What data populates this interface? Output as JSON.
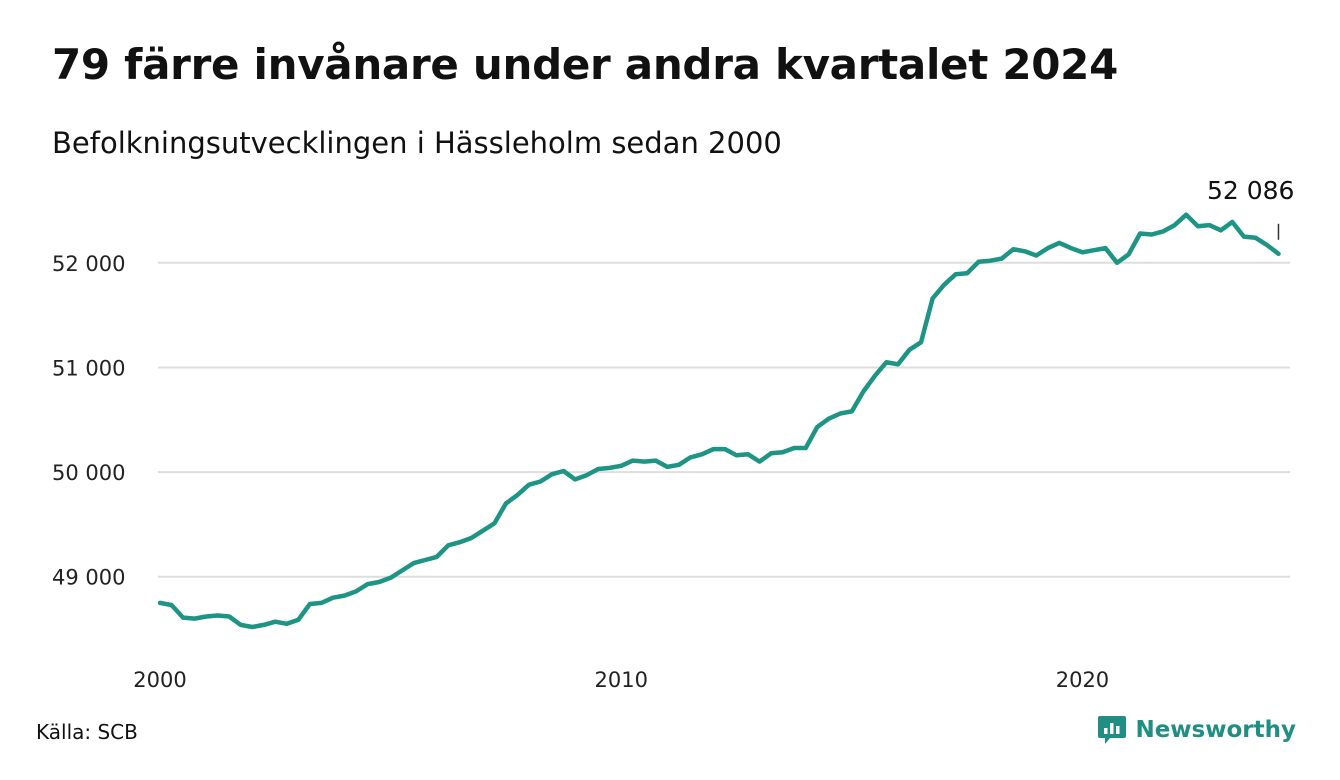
{
  "title": "79 färre invånare under andra kvartalet 2024",
  "subtitle": "Befolkningsutvecklingen i Hässleholm sedan 2000",
  "source": "Källa: SCB",
  "brand": {
    "name": "Newsworthy",
    "color": "#1e8f82"
  },
  "colors": {
    "line": "#1e9484",
    "grid": "#dddddd"
  },
  "chart_data": {
    "type": "line",
    "title": "79 färre invånare under andra kvartalet 2024",
    "subtitle": "Befolkningsutvecklingen i Hässleholm sedan 2000",
    "xlabel": "",
    "ylabel": "",
    "xlim": [
      2000,
      2024.5
    ],
    "ylim": [
      48300,
      52600
    ],
    "grid": true,
    "x_ticks": [
      2000,
      2010,
      2020
    ],
    "x_tick_labels": [
      "2000",
      "2010",
      "2020"
    ],
    "y_ticks": [
      49000,
      50000,
      51000,
      52000
    ],
    "y_tick_labels": [
      "49 000",
      "50 000",
      "51 000",
      "52 000"
    ],
    "annotation": {
      "x": 2024.25,
      "y": 52086,
      "label": "52 086"
    },
    "series": [
      {
        "x": [
          2000.0,
          2000.25,
          2000.5,
          2000.75,
          2001.0,
          2001.25,
          2001.5,
          2001.75,
          2002.0,
          2002.25,
          2002.5,
          2002.75,
          2003.0,
          2003.25,
          2003.5,
          2003.75,
          2004.0,
          2004.25,
          2004.5,
          2004.75,
          2005.0,
          2005.25,
          2005.5,
          2005.75,
          2006.0,
          2006.25,
          2006.5,
          2006.75,
          2007.0,
          2007.25,
          2007.5,
          2007.75,
          2008.0,
          2008.25,
          2008.5,
          2008.75,
          2009.0,
          2009.25,
          2009.5,
          2009.75,
          2010.0,
          2010.25,
          2010.5,
          2010.75,
          2011.0,
          2011.25,
          2011.5,
          2011.75,
          2012.0,
          2012.25,
          2012.5,
          2012.75,
          2013.0,
          2013.25,
          2013.5,
          2013.75,
          2014.0,
          2014.25,
          2014.5,
          2014.75,
          2015.0,
          2015.25,
          2015.5,
          2015.75,
          2016.0,
          2016.25,
          2016.5,
          2016.75,
          2017.0,
          2017.25,
          2017.5,
          2017.75,
          2018.0,
          2018.25,
          2018.5,
          2018.75,
          2019.0,
          2019.25,
          2019.5,
          2019.75,
          2020.0,
          2020.25,
          2020.5,
          2020.75,
          2021.0,
          2021.25,
          2021.5,
          2021.75,
          2022.0,
          2022.25,
          2022.5,
          2022.75,
          2023.0,
          2023.25,
          2023.5,
          2023.75,
          2024.0,
          2024.25
        ],
        "values": [
          48750,
          48730,
          48610,
          48600,
          48620,
          48630,
          48620,
          48540,
          48520,
          48540,
          48570,
          48550,
          48590,
          48740,
          48750,
          48800,
          48820,
          48860,
          48930,
          48950,
          48990,
          49060,
          49130,
          49160,
          49190,
          49300,
          49330,
          49370,
          49440,
          49510,
          49700,
          49780,
          49880,
          49910,
          49980,
          50010,
          49930,
          49970,
          50030,
          50040,
          50060,
          50110,
          50100,
          50110,
          50050,
          50070,
          50140,
          50170,
          50220,
          50220,
          50160,
          50170,
          50100,
          50180,
          50190,
          50230,
          50230,
          50430,
          50510,
          50560,
          50580,
          50770,
          50920,
          51050,
          51030,
          51170,
          51240,
          51660,
          51790,
          51890,
          51900,
          52010,
          52020,
          52040,
          52130,
          52110,
          52070,
          52140,
          52190,
          52140,
          52100,
          52120,
          52140,
          52000,
          52080,
          52280,
          52270,
          52300,
          52360,
          52460,
          52350,
          52360,
          52310,
          52390,
          52250,
          52240,
          52170,
          52086
        ]
      }
    ]
  }
}
